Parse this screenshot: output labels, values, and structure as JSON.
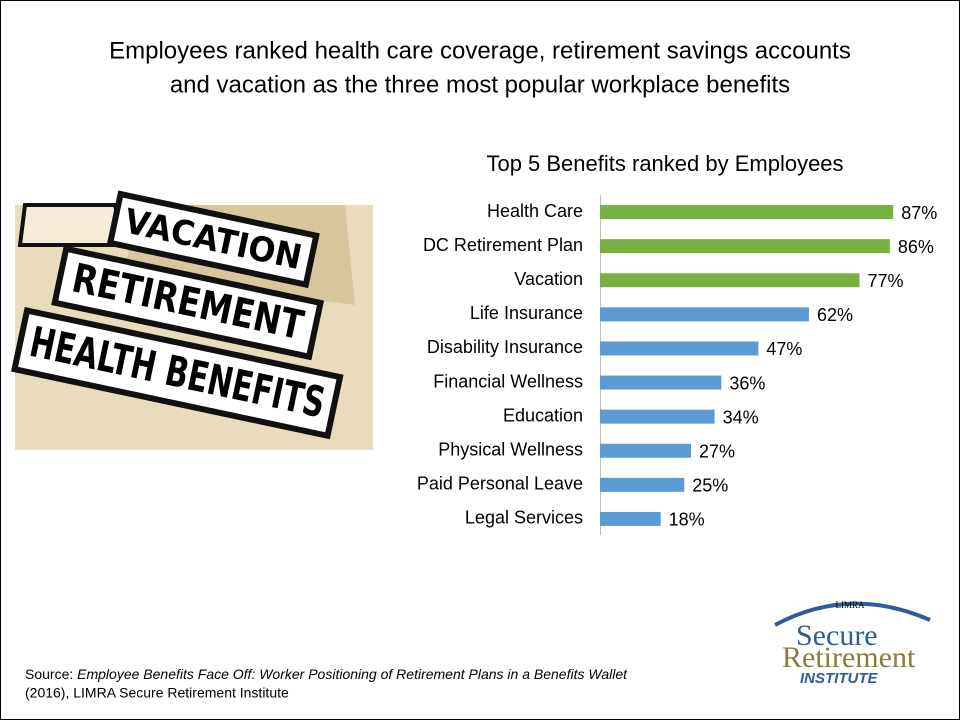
{
  "slide": {
    "title_lines": [
      "Employees ranked health care coverage, retirement savings accounts",
      "and vacation as the three most popular workplace benefits"
    ],
    "image_labels": [
      "VACATION",
      "RETIREMENT",
      "HEALTH BENEFITS"
    ],
    "source_prefix": "Source: ",
    "source_title": "Employee Benefits Face Off: Worker Positioning of Retirement Plans in a Benefits Wallet",
    "source_suffix": "(2016), LIMRA Secure Retirement Institute",
    "logo": {
      "top": "LIMRA",
      "line1": "Secure",
      "line2": "Retirement",
      "line3": "INSTITUTE"
    }
  },
  "chart_data": {
    "type": "hbar",
    "title": "Top 5 Benefits ranked by Employees",
    "categories": [
      "Health Care",
      "DC Retirement Plan",
      "Vacation",
      "Life Insurance",
      "Disability Insurance",
      "Financial Wellness",
      "Education",
      "Physical Wellness",
      "Paid Personal Leave",
      "Legal Services"
    ],
    "values": [
      87,
      86,
      77,
      62,
      47,
      36,
      34,
      27,
      25,
      18
    ],
    "value_labels": [
      "87%",
      "86%",
      "77%",
      "62%",
      "47%",
      "36%",
      "34%",
      "27%",
      "25%",
      "18%"
    ],
    "colors": [
      "#77b142",
      "#77b142",
      "#77b142",
      "#5b9bd5",
      "#5b9bd5",
      "#5b9bd5",
      "#5b9bd5",
      "#5b9bd5",
      "#5b9bd5",
      "#5b9bd5"
    ],
    "xlim": [
      0,
      100
    ]
  }
}
